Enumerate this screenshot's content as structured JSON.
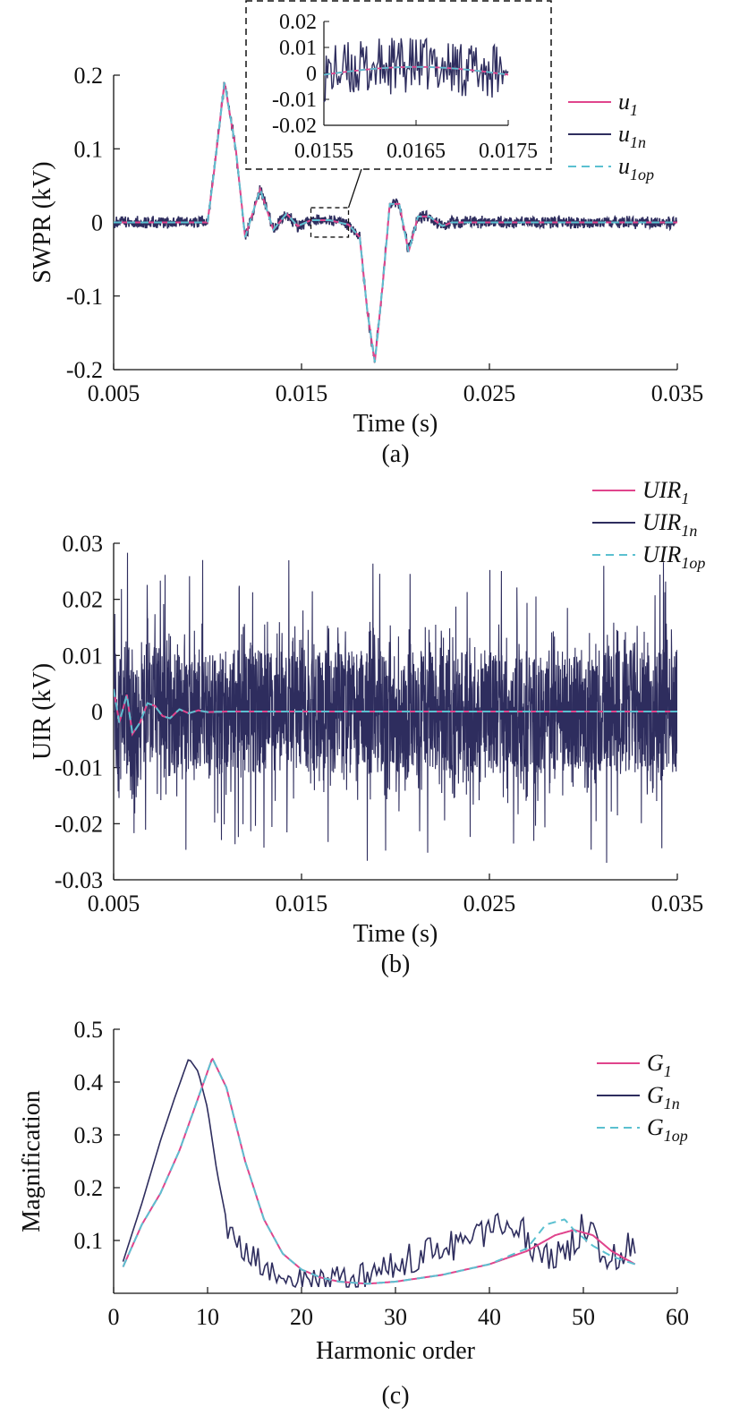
{
  "chart_data": [
    {
      "type": "line",
      "caption": "(a)",
      "xlabel": "Time (s)",
      "ylabel": "SWPR (kV)",
      "xlim": [
        0.005,
        0.035
      ],
      "ylim": [
        -0.2,
        0.2
      ],
      "x_ticks": [
        "0.005",
        "0.015",
        "0.025",
        "0.035"
      ],
      "y_ticks": [
        "-0.2",
        "-0.1",
        "0",
        "0.1",
        "0.2"
      ],
      "legend_position": "right",
      "legend": [
        {
          "base": "u",
          "sub": "1"
        },
        {
          "base": "u",
          "sub": "1n"
        },
        {
          "base": "u",
          "sub": "1op"
        }
      ],
      "series": [
        {
          "label": "u1",
          "color": "#e0448c",
          "style": "solid",
          "x": [
            0.005,
            0.01,
            0.0103,
            0.0109,
            0.0115,
            0.012,
            0.0128,
            0.0135,
            0.0142,
            0.0148,
            0.0155,
            0.0165,
            0.0175,
            0.0181,
            0.0185,
            0.0189,
            0.0193,
            0.0197,
            0.0202,
            0.0207,
            0.0212,
            0.0218,
            0.0225,
            0.023,
            0.035
          ],
          "values": [
            0,
            0,
            0.06,
            0.19,
            0.1,
            -0.02,
            0.045,
            -0.01,
            0.012,
            -0.005,
            0.003,
            0.003,
            -0.003,
            -0.02,
            -0.12,
            -0.19,
            -0.09,
            0.025,
            0.025,
            -0.04,
            0.008,
            0.008,
            -0.005,
            0,
            0
          ]
        },
        {
          "label": "u1n",
          "color": "#2e2d5e",
          "style": "solid",
          "noise": 0.005
        },
        {
          "label": "u1op",
          "color": "#5bc0d0",
          "style": "dashed"
        }
      ],
      "inset": {
        "xlim": [
          0.0155,
          0.0175
        ],
        "ylim": [
          -0.02,
          0.02
        ],
        "x_ticks": [
          "0.0155",
          "0.0165",
          "0.0175"
        ],
        "y_ticks": [
          "0.02",
          "0.01",
          "0",
          "-0.01",
          "-0.02"
        ],
        "style": "dashed box"
      }
    },
    {
      "type": "line",
      "caption": "(b)",
      "xlabel": "Time (s)",
      "ylabel": "UIR (kV)",
      "xlim": [
        0.005,
        0.035
      ],
      "ylim": [
        -0.03,
        0.03
      ],
      "x_ticks": [
        "0.005",
        "0.015",
        "0.025",
        "0.035"
      ],
      "y_ticks": [
        "-0.03",
        "-0.02",
        "-0.01",
        "0",
        "0.01",
        "0.02",
        "0.03"
      ],
      "legend_position": "top-right",
      "legend": [
        {
          "base": "UIR",
          "sub": "1"
        },
        {
          "base": "UIR",
          "sub": "1n"
        },
        {
          "base": "UIR",
          "sub": "1op"
        }
      ],
      "series": [
        {
          "label": "UIR1",
          "color": "#e0448c",
          "style": "solid",
          "x": [
            0.005,
            0.0053,
            0.0057,
            0.006,
            0.0064,
            0.0068,
            0.0072,
            0.0076,
            0.008,
            0.0085,
            0.009,
            0.0095,
            0.01,
            0.011,
            0.035
          ],
          "values": [
            0.004,
            -0.002,
            0.003,
            -0.004,
            -0.002,
            0.0015,
            0.001,
            -0.0008,
            -0.0012,
            0.0004,
            -0.0003,
            0.0002,
            -0.0001,
            0,
            0
          ]
        },
        {
          "label": "UIR1n",
          "color": "#2e2d5e",
          "style": "solid",
          "noise_range": [
            -0.029,
            0.025
          ]
        },
        {
          "label": "UIR1op",
          "color": "#5bc0d0",
          "style": "dashed"
        }
      ]
    },
    {
      "type": "line",
      "caption": "(c)",
      "xlabel": "Harmonic order",
      "ylabel": "Magnification",
      "xlim": [
        0,
        60
      ],
      "ylim": [
        0,
        0.5
      ],
      "x_ticks": [
        "0",
        "10",
        "20",
        "30",
        "40",
        "50",
        "60"
      ],
      "y_ticks": [
        "0.1",
        "0.2",
        "0.3",
        "0.4",
        "0.5"
      ],
      "legend_position": "right",
      "legend": [
        {
          "base": "G",
          "sub": "1"
        },
        {
          "base": "G",
          "sub": "1n"
        },
        {
          "base": "G",
          "sub": "1op"
        }
      ],
      "series": [
        {
          "label": "G1",
          "color": "#e0448c",
          "style": "solid",
          "x": [
            1,
            3,
            5,
            7,
            9,
            10.5,
            12,
            14,
            16,
            18,
            20,
            22,
            24,
            27,
            30,
            35,
            40,
            44,
            47,
            49,
            51,
            53,
            55.5
          ],
          "values": [
            0.05,
            0.13,
            0.19,
            0.27,
            0.37,
            0.445,
            0.39,
            0.25,
            0.14,
            0.075,
            0.045,
            0.03,
            0.022,
            0.018,
            0.022,
            0.035,
            0.055,
            0.08,
            0.11,
            0.12,
            0.11,
            0.08,
            0.055
          ]
        },
        {
          "label": "G1n",
          "color": "#2e2d5e",
          "style": "solid",
          "x": [
            1,
            3,
            5,
            6.5,
            8,
            9,
            10,
            11,
            12,
            13,
            15,
            17,
            19,
            22,
            26,
            30,
            33,
            36,
            39,
            42,
            45,
            48,
            50,
            53,
            55.5
          ],
          "values": [
            0.06,
            0.17,
            0.29,
            0.37,
            0.445,
            0.42,
            0.35,
            0.23,
            0.14,
            0.09,
            0.06,
            0.04,
            0.02,
            0.02,
            0.025,
            0.05,
            0.08,
            0.09,
            0.11,
            0.15,
            0.08,
            0.07,
            0.13,
            0.06,
            0.1
          ]
        },
        {
          "label": "G1op",
          "color": "#5bc0d0",
          "style": "dashed",
          "x": [
            1,
            3,
            5,
            7,
            9,
            10.5,
            12,
            14,
            16,
            18,
            20,
            22,
            24,
            27,
            30,
            35,
            40,
            44,
            46,
            48,
            49,
            51,
            53,
            55.5
          ],
          "values": [
            0.05,
            0.13,
            0.19,
            0.27,
            0.37,
            0.445,
            0.39,
            0.25,
            0.14,
            0.075,
            0.045,
            0.03,
            0.022,
            0.018,
            0.022,
            0.035,
            0.055,
            0.085,
            0.13,
            0.14,
            0.12,
            0.09,
            0.07,
            0.055
          ]
        }
      ]
    }
  ]
}
